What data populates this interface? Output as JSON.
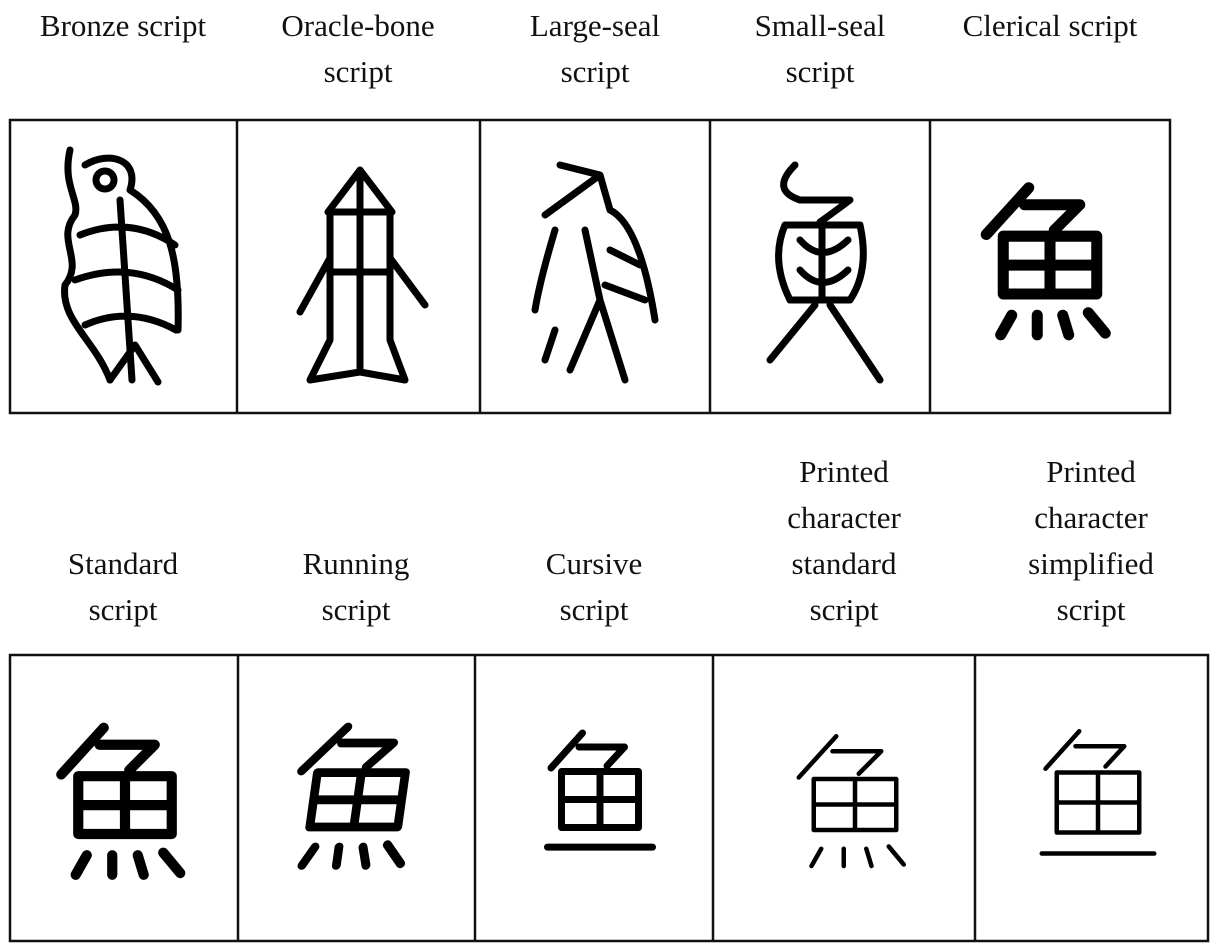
{
  "rows": [
    {
      "panels": [
        {
          "label": [
            "Bronze script"
          ]
        },
        {
          "label": [
            "Oracle-bone",
            "script"
          ]
        },
        {
          "label": [
            "Large-seal",
            "script"
          ]
        },
        {
          "label": [
            "Small-seal",
            "script"
          ]
        },
        {
          "label": [
            "Clerical script"
          ]
        }
      ]
    },
    {
      "panels": [
        {
          "label": [
            "Standard",
            "script"
          ]
        },
        {
          "label": [
            "Running",
            "script"
          ]
        },
        {
          "label": [
            "Cursive",
            "script"
          ]
        },
        {
          "label": [
            "Printed",
            "character",
            "standard",
            "script"
          ]
        },
        {
          "label": [
            "Printed",
            "character",
            "simplified",
            "script"
          ]
        }
      ]
    }
  ]
}
